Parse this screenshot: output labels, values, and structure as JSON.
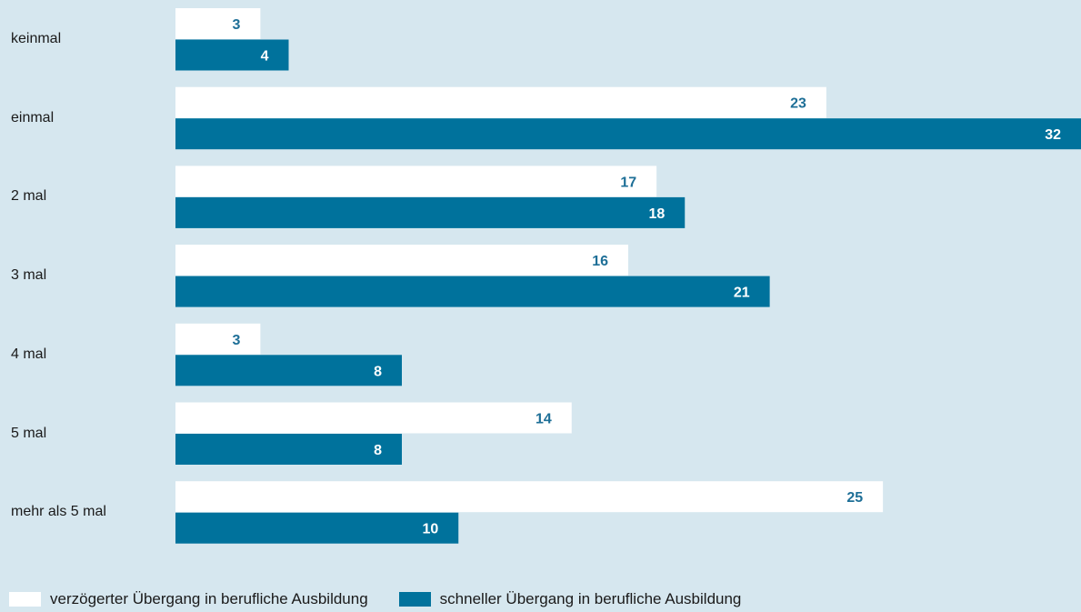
{
  "chart_data": {
    "type": "bar",
    "orientation": "horizontal",
    "categories": [
      "keinmal",
      "einmal",
      "2 mal",
      "3 mal",
      "4 mal",
      "5 mal",
      "mehr als 5 mal"
    ],
    "series": [
      {
        "name": "verzögerter Übergang in berufliche Ausbildung",
        "values": [
          3,
          23,
          17,
          16,
          3,
          14,
          25
        ],
        "color": "#ffffff",
        "label_color": "#1e6f97"
      },
      {
        "name": "schneller Übergang in berufliche Ausbildung",
        "values": [
          4,
          32,
          18,
          21,
          8,
          8,
          10
        ],
        "color": "#00729c",
        "label_color": "#ffffff"
      }
    ],
    "xlim": [
      0,
      32
    ],
    "grid": false,
    "legend_position": "bottom-left",
    "data_labels": true
  },
  "colors": {
    "background": "#d6e7ef"
  }
}
